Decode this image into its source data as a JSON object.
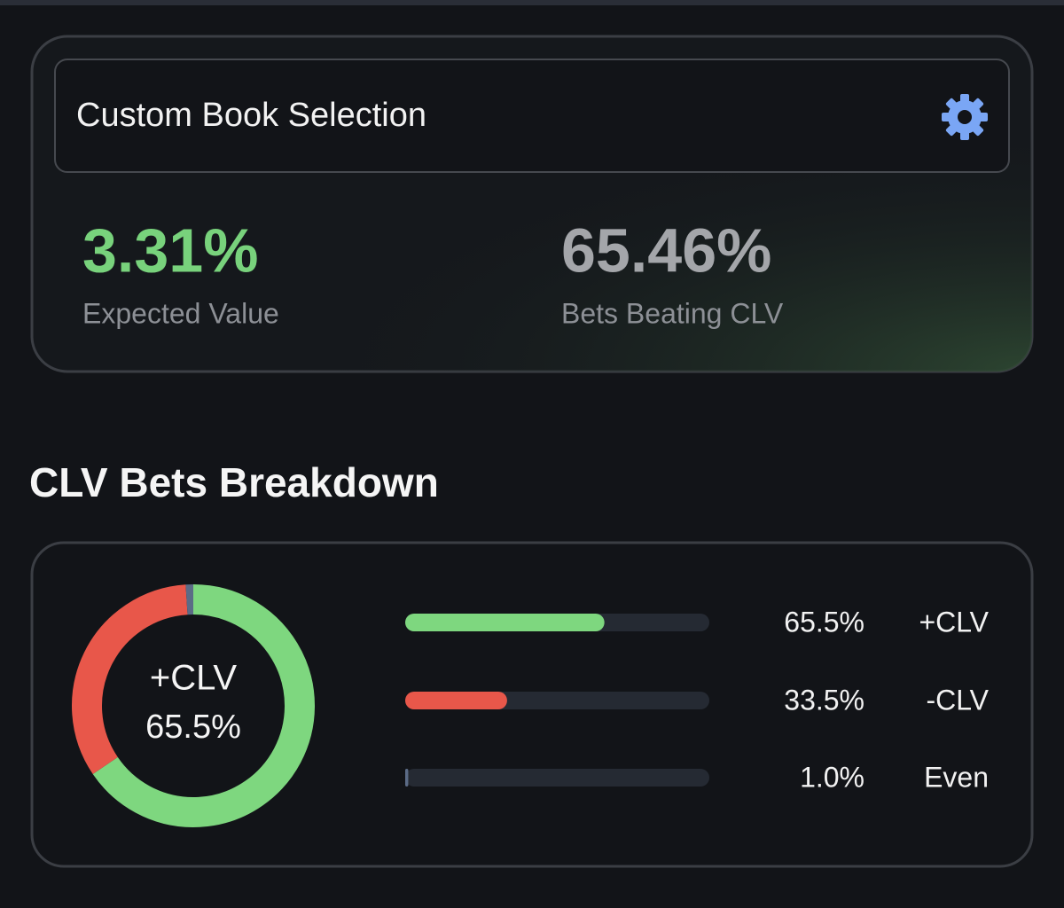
{
  "header": {
    "title": "Custom Book Selection"
  },
  "stats": [
    {
      "value": "3.31%",
      "label": "Expected Value"
    },
    {
      "value": "65.46%",
      "label": "Bets Beating CLV"
    }
  ],
  "section_title": "CLV Bets Breakdown",
  "chart_data": {
    "type": "donut",
    "categories": [
      "+CLV",
      "-CLV",
      "Even"
    ],
    "values": [
      65.5,
      33.5,
      1.0
    ],
    "value_labels": [
      "65.5%",
      "33.5%",
      "1.0%"
    ],
    "colors": [
      "#7ed77f",
      "#e8574a",
      "#5b6b86"
    ]
  }
}
